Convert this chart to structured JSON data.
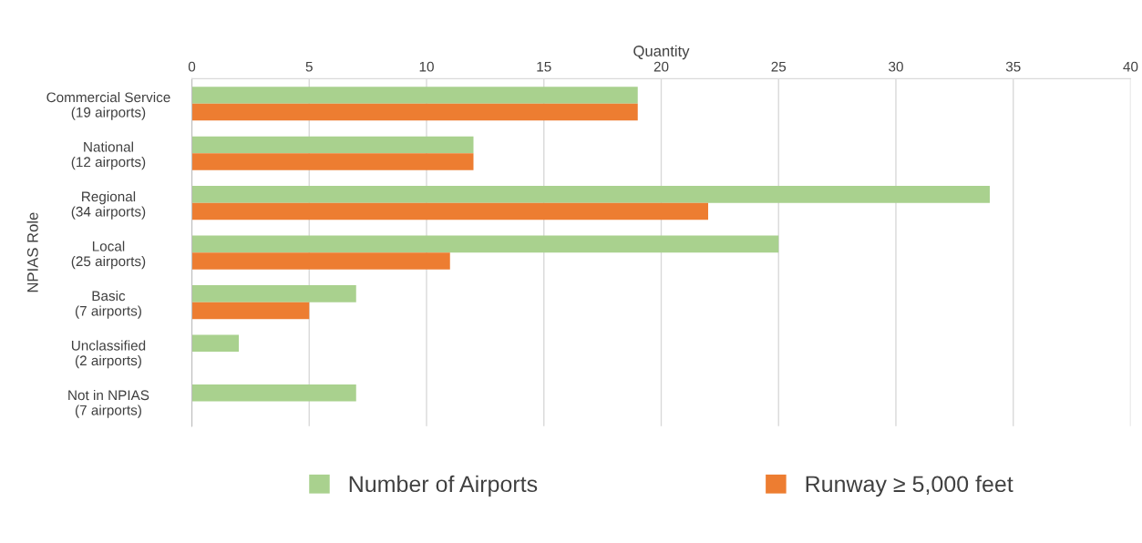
{
  "chart_data": {
    "type": "bar",
    "orientation": "horizontal",
    "categories": [
      "Commercial Service\n(19 airports)",
      "National\n(12 airports)",
      "Regional\n(34 airports)",
      "Local\n(25 airports)",
      "Basic\n(7 airports)",
      "Unclassified\n(2 airports)",
      "Not in NPIAS\n(7 airports)"
    ],
    "series": [
      {
        "name": "Number of Airports",
        "color": "#a9d18e",
        "values": [
          19,
          12,
          34,
          25,
          7,
          2,
          7
        ]
      },
      {
        "name": "Runway ≥ 5,000 feet",
        "color": "#ed7d31",
        "values": [
          19,
          12,
          22,
          11,
          5,
          0,
          0
        ]
      }
    ],
    "xlabel": "Quantity",
    "ylabel": "NPIAS Role",
    "xlim": [
      0,
      40
    ],
    "xticks": [
      0,
      5,
      10,
      15,
      20,
      25,
      30,
      35,
      40
    ],
    "grid": "x",
    "legend": "bottom"
  }
}
